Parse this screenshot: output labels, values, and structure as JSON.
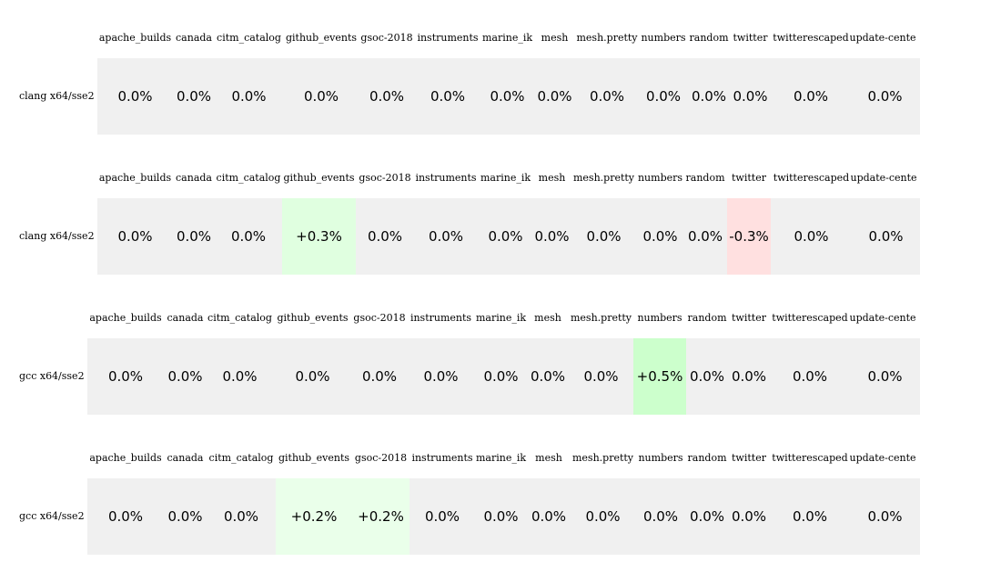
{
  "columns": [
    "apache_builds",
    "canada",
    "citm_catalog",
    "github_events",
    "gsoc-2018",
    "instruments",
    "marine_ik",
    "mesh",
    "mesh.pretty",
    "numbers",
    "random",
    "twitter",
    "twitterescaped",
    "update-cente"
  ],
  "colors": {
    "neutral": "#f0f0f0",
    "positive_light": "#eaffea",
    "positive_mid": "#e0ffe0",
    "positive_strong": "#ccffcc",
    "negative": "#ffe0e0"
  },
  "tables": [
    {
      "label": "clang x64/sse2",
      "values": [
        "0.0%",
        "0.0%",
        "0.0%",
        "0.0%",
        "0.0%",
        "0.0%",
        "0.0%",
        "0.0%",
        "0.0%",
        "0.0%",
        "0.0%",
        "0.0%",
        "0.0%",
        "0.0%"
      ],
      "highlights": {}
    },
    {
      "label": "clang x64/sse2",
      "values": [
        "0.0%",
        "0.0%",
        "0.0%",
        "+0.3%",
        "0.0%",
        "0.0%",
        "0.0%",
        "0.0%",
        "0.0%",
        "0.0%",
        "0.0%",
        "-0.3%",
        "0.0%",
        "0.0%"
      ],
      "highlights": {
        "3": "positive_mid",
        "11": "negative"
      }
    },
    {
      "label": "gcc x64/sse2",
      "values": [
        "0.0%",
        "0.0%",
        "0.0%",
        "0.0%",
        "0.0%",
        "0.0%",
        "0.0%",
        "0.0%",
        "0.0%",
        "+0.5%",
        "0.0%",
        "0.0%",
        "0.0%",
        "0.0%"
      ],
      "highlights": {
        "9": "positive_strong"
      }
    },
    {
      "label": "gcc x64/sse2",
      "values": [
        "0.0%",
        "0.0%",
        "0.0%",
        "+0.2%",
        "+0.2%",
        "0.0%",
        "0.0%",
        "0.0%",
        "0.0%",
        "0.0%",
        "0.0%",
        "0.0%",
        "0.0%",
        "0.0%"
      ],
      "highlights": {
        "3": "positive_light",
        "4": "positive_light"
      }
    }
  ]
}
